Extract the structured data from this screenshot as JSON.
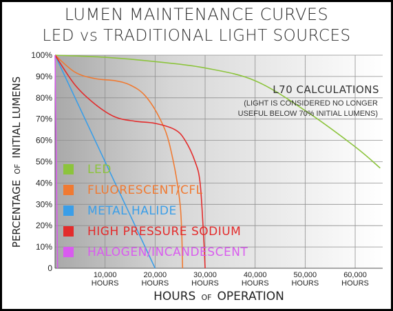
{
  "chart_data": {
    "type": "line",
    "title": "LUMEN MAINTENANCE CURVES",
    "subtitle": "LED vs TRADITIONAL LIGHT SOURCES",
    "ylabel": {
      "main": "PERCENTAGE",
      "of": "OF",
      "rest": "INITIAL LUMENS"
    },
    "xlabel": {
      "main": "HOURS",
      "of": "OF",
      "rest": "OPERATION"
    },
    "xlim": [
      0,
      65500
    ],
    "ylim": [
      0,
      100
    ],
    "y_ticks": [
      "100%",
      "90%",
      "80%",
      "70%",
      "60%",
      "50%",
      "40%",
      "30%",
      "20%",
      "10%",
      "0"
    ],
    "x_ticks": [
      {
        "value": 10000,
        "number": "10,000",
        "unit": "HOURS"
      },
      {
        "value": 20000,
        "number": "20,000",
        "unit": "HOURS"
      },
      {
        "value": 30000,
        "number": "30,000",
        "unit": "HOURS"
      },
      {
        "value": 40000,
        "number": "40,000",
        "unit": "HOURS"
      },
      {
        "value": 50000,
        "number": "50,000",
        "unit": "HOURS"
      },
      {
        "value": 60000,
        "number": "60,000",
        "unit": "HOURS"
      }
    ],
    "annotation": {
      "title": "L70 CALCULATIONS",
      "line1": "(LIGHT IS CONSIDERED NO LONGER",
      "line2": "USEFUL BELOW 70% INITIAL LUMENS)"
    },
    "series": [
      {
        "name": "LED",
        "color": "#8cc43c",
        "points": [
          [
            0,
            100
          ],
          [
            10000,
            99
          ],
          [
            20000,
            97
          ],
          [
            30000,
            94
          ],
          [
            40000,
            88
          ],
          [
            50000,
            74
          ],
          [
            60000,
            57
          ],
          [
            65000,
            47
          ]
        ]
      },
      {
        "name": "FLUORESCENT/CFL",
        "color": "#f07a32",
        "points": [
          [
            0,
            100
          ],
          [
            4000,
            92
          ],
          [
            8000,
            89
          ],
          [
            12000,
            88
          ],
          [
            15000,
            86
          ],
          [
            18000,
            81
          ],
          [
            21000,
            70
          ],
          [
            23000,
            57
          ],
          [
            25000,
            30
          ],
          [
            25500,
            0
          ]
        ]
      },
      {
        "name": "METAL HALIDE",
        "color": "#3a9ee8",
        "points": [
          [
            0,
            100
          ],
          [
            20000,
            0
          ]
        ]
      },
      {
        "name": "HIGH PRESSURE SODIUM",
        "color": "#e32b2b",
        "points": [
          [
            0,
            100
          ],
          [
            4000,
            86
          ],
          [
            8000,
            77
          ],
          [
            12000,
            71
          ],
          [
            16000,
            69
          ],
          [
            20000,
            68
          ],
          [
            24000,
            65
          ],
          [
            26000,
            60
          ],
          [
            28000,
            50
          ],
          [
            29000,
            40
          ],
          [
            29700,
            15
          ],
          [
            30000,
            0
          ]
        ]
      },
      {
        "name": "HALOGEN/INCANDESCENT",
        "color": "#d95bef",
        "points": [
          [
            0,
            100
          ],
          [
            500,
            0
          ]
        ]
      }
    ]
  }
}
